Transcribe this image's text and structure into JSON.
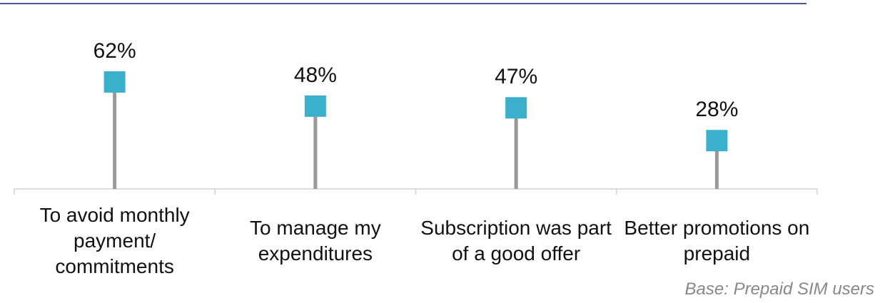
{
  "chart_data": {
    "type": "lollipop",
    "categories": [
      "To avoid monthly payment/ commitments",
      "To manage my expenditures",
      "Subscription was part of a good offer",
      "Better promotions on prepaid"
    ],
    "values": [
      62,
      48,
      47,
      28
    ],
    "value_labels": [
      "62%",
      "48%",
      "47%",
      "28%"
    ],
    "color": "#3bb0cc",
    "stem_color": "#999999",
    "ylim": [
      0,
      100
    ],
    "annotation": "Base: Prepaid SIM users"
  }
}
